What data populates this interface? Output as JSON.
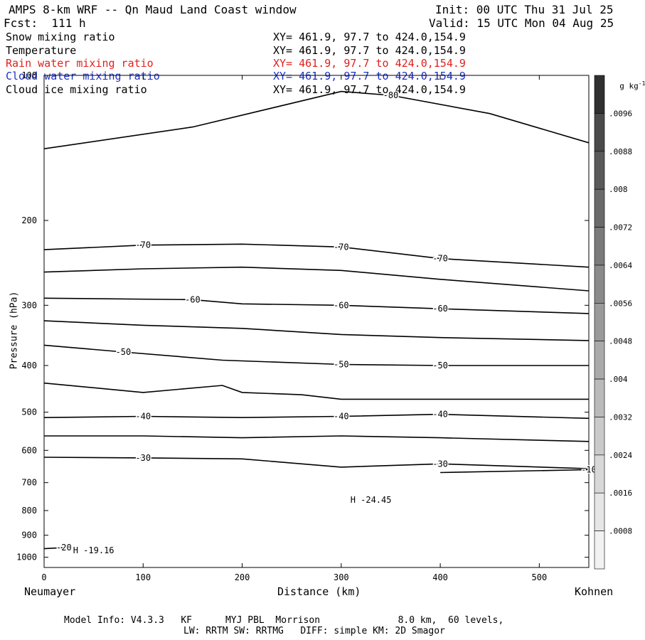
{
  "header": {
    "title": "AMPS 8-km WRF -- Qn Maud Land Coast window",
    "forecast": "Fcst:  111 h",
    "init": "Init: 00 UTC Thu 31 Jul 25",
    "valid": "Valid: 15 UTC Mon 04 Aug 25"
  },
  "fields": [
    {
      "name": "Snow mixing ratio",
      "xy": "XY= 461.9, 97.7 to 424.0,154.9",
      "color": "#000000"
    },
    {
      "name": "Temperature",
      "xy": "XY= 461.9, 97.7 to 424.0,154.9",
      "color": "#000000"
    },
    {
      "name": "Rain water mixing ratio",
      "xy": "XY= 461.9, 97.7 to 424.0,154.9",
      "color": "#e0201e"
    },
    {
      "name": "Cloud water mixing ratio",
      "xy": "XY= 461.9, 97.7 to 424.0,154.9",
      "color": "#2030c0"
    },
    {
      "name": "Cloud ice mixing ratio",
      "xy": "XY= 461.9, 97.7 to 424.0,154.9",
      "color": "#000000"
    }
  ],
  "axes": {
    "ylabel": "Pressure (hPa)",
    "xlabel": "Distance (km)",
    "left_location": "Neumayer",
    "right_location": "Kohnen"
  },
  "colorbar": {
    "unit": "g kg",
    "unit_sup": "-1",
    "ticks": [
      ".0096",
      ".0088",
      ".008",
      ".0072",
      ".0064",
      ".0056",
      ".0048",
      ".004",
      ".0032",
      ".0024",
      ".0016",
      ".0008"
    ],
    "colors": [
      "#303030",
      "#4a4a4a",
      "#5a5a5a",
      "#6a6a6a",
      "#7a7a7a",
      "#8a8a8a",
      "#9a9a9a",
      "#aaaaaa",
      "#bababa",
      "#cacaca",
      "#d8d8d8",
      "#e6e6e6",
      "#f2f2f2"
    ]
  },
  "footer": {
    "line1": "Model Info: V4.3.3   KF      MYJ PBL  Morrison              8.0 km,  60 levels,",
    "line2": "LW: RRTM SW: RRTMG   DIFF: simple KM: 2D Smagor"
  },
  "chart_data": {
    "type": "line",
    "xlim": [
      0,
      550
    ],
    "ylim": [
      1050,
      100
    ],
    "y_scale": "log",
    "xticks": [
      0,
      100,
      200,
      300,
      400,
      500
    ],
    "yticks": [
      100,
      200,
      300,
      400,
      500,
      600,
      700,
      800,
      900,
      1000
    ],
    "series": [
      {
        "name": "-80",
        "labels": [
          "-80"
        ],
        "points": [
          [
            0,
            142
          ],
          [
            150,
            128
          ],
          [
            300,
            108
          ],
          [
            350,
            110
          ],
          [
            450,
            120
          ],
          [
            550,
            138
          ]
        ]
      },
      {
        "name": "-70",
        "labels": [
          "-70",
          "-70",
          "-70"
        ],
        "points": [
          [
            0,
            230
          ],
          [
            100,
            225
          ],
          [
            200,
            224
          ],
          [
            300,
            227
          ],
          [
            400,
            240
          ],
          [
            550,
            250
          ]
        ]
      },
      {
        "name": "",
        "points": [
          [
            0,
            256
          ],
          [
            100,
            252
          ],
          [
            200,
            250
          ],
          [
            300,
            254
          ],
          [
            400,
            265
          ],
          [
            550,
            280
          ]
        ]
      },
      {
        "name": "-60",
        "labels": [
          "-60",
          "-60",
          "-60"
        ],
        "points": [
          [
            0,
            290
          ],
          [
            150,
            292
          ],
          [
            200,
            298
          ],
          [
            300,
            300
          ],
          [
            400,
            305
          ],
          [
            550,
            312
          ]
        ]
      },
      {
        "name": "",
        "points": [
          [
            0,
            323
          ],
          [
            100,
            330
          ],
          [
            200,
            335
          ],
          [
            300,
            345
          ],
          [
            400,
            350
          ],
          [
            550,
            355
          ]
        ]
      },
      {
        "name": "-50",
        "labels": [
          "-50",
          "-50",
          "-50"
        ],
        "points": [
          [
            0,
            363
          ],
          [
            80,
            375
          ],
          [
            180,
            390
          ],
          [
            300,
            398
          ],
          [
            400,
            400
          ],
          [
            550,
            400
          ]
        ]
      },
      {
        "name": "",
        "points": [
          [
            0,
            435
          ],
          [
            100,
            455
          ],
          [
            180,
            440
          ],
          [
            200,
            455
          ],
          [
            260,
            460
          ],
          [
            300,
            470
          ],
          [
            550,
            470
          ]
        ]
      },
      {
        "name": "-40",
        "labels": [
          "-40",
          "-40",
          "-40"
        ],
        "points": [
          [
            0,
            513
          ],
          [
            100,
            510
          ],
          [
            200,
            513
          ],
          [
            300,
            510
          ],
          [
            400,
            505
          ],
          [
            550,
            515
          ]
        ]
      },
      {
        "name": "",
        "points": [
          [
            0,
            560
          ],
          [
            100,
            560
          ],
          [
            200,
            565
          ],
          [
            300,
            560
          ],
          [
            400,
            565
          ],
          [
            550,
            575
          ]
        ]
      },
      {
        "name": "-30",
        "labels": [
          "-30",
          "-30"
        ],
        "points": [
          [
            0,
            620
          ],
          [
            100,
            622
          ],
          [
            200,
            625
          ],
          [
            300,
            650
          ],
          [
            400,
            640
          ],
          [
            550,
            655
          ]
        ]
      },
      {
        "name": "-24.45",
        "labels": [
          "H -24.45"
        ],
        "points": [
          [
            330,
            760
          ]
        ]
      },
      {
        "name": "-19.16",
        "labels": [
          "H -19.16"
        ],
        "points": [
          [
            50,
            968
          ]
        ]
      },
      {
        "name": "-20",
        "labels": [
          "-20"
        ],
        "points": [
          [
            0,
            960
          ],
          [
            20,
            955
          ]
        ]
      },
      {
        "name": "-10",
        "labels": [
          "-10"
        ],
        "points": [
          [
            400,
            667
          ],
          [
            550,
            658
          ]
        ]
      }
    ]
  }
}
